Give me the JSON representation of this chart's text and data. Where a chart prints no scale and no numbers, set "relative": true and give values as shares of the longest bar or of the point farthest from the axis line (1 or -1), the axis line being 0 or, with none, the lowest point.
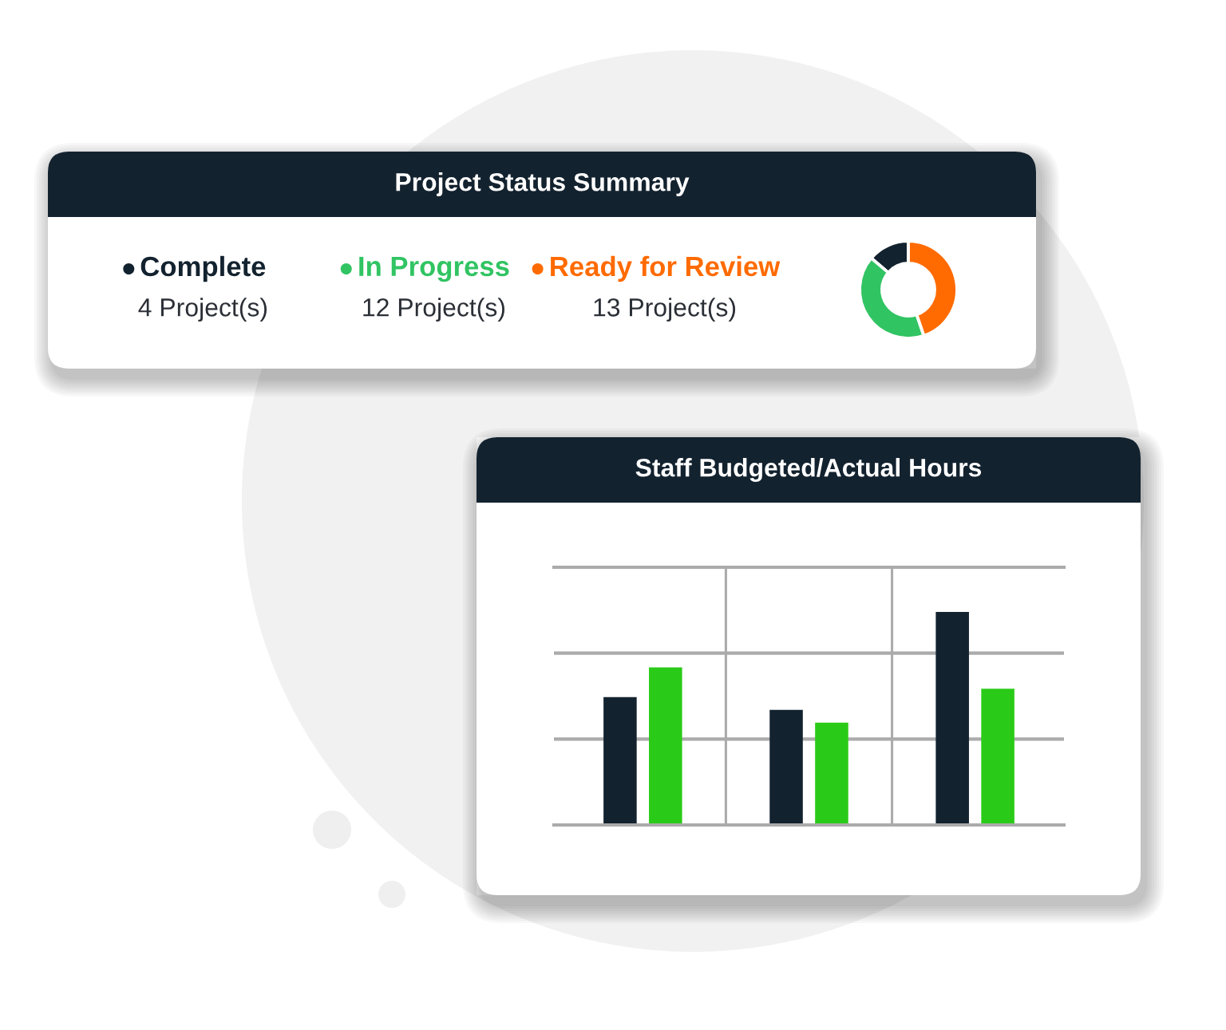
{
  "chart_data": [
    {
      "type": "donut",
      "title": "Project Status Summary",
      "categories": [
        "Complete",
        "In Progress",
        "Ready for Review"
      ],
      "values": [
        4,
        12,
        13
      ],
      "colors": [
        "#13222f",
        "#31c463",
        "#ff6b00"
      ],
      "value_labels": [
        "4 Project(s)",
        "12 Project(s)",
        "13 Project(s)"
      ],
      "legend": "left"
    },
    {
      "type": "bar",
      "title": "Staff Budgeted/Actual Hours",
      "categories": [
        null,
        null,
        null
      ],
      "relative": true,
      "grid": "x",
      "ref_lines": [
        {
          "axis": "y",
          "value": 0.403,
          "color": "#ababab"
        },
        {
          "axis": "y",
          "value": 0.807,
          "color": "#ababab"
        }
      ],
      "series": [
        {
          "color": "#13222f",
          "values": [
            0.6,
            0.54,
            1.0
          ]
        },
        {
          "color": "#2acb18",
          "values": [
            0.74,
            0.48,
            0.64
          ]
        }
      ]
    }
  ]
}
